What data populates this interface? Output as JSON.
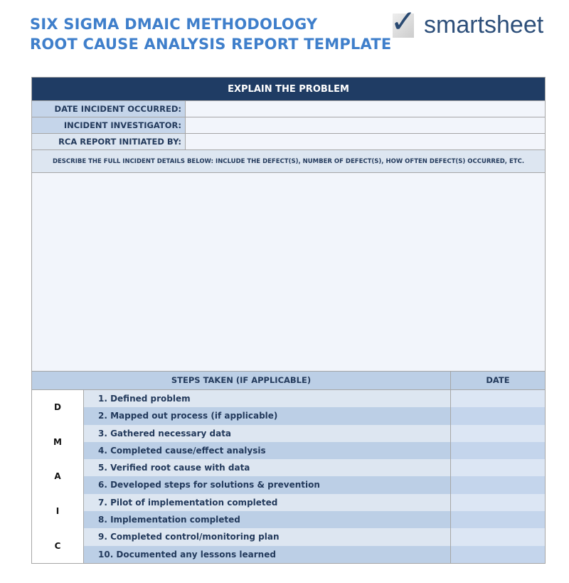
{
  "title": {
    "line1": "SIX SIGMA DMAIC METHODOLOGY",
    "line2": "ROOT CAUSE ANALYSIS REPORT TEMPLATE"
  },
  "logo": {
    "text": "smartsheet"
  },
  "problem": {
    "header": "EXPLAIN THE PROBLEM",
    "fields": [
      {
        "label": "DATE INCIDENT OCCURRED:",
        "value": ""
      },
      {
        "label": "INCIDENT INVESTIGATOR:",
        "value": ""
      },
      {
        "label": "RCA REPORT INITIATED BY:",
        "value": ""
      }
    ],
    "describe": "DESCRIBE THE FULL INCIDENT DETAILS BELOW: INCLUDE THE DEFECT(S), NUMBER OF DEFECT(S), HOW OFTEN DEFECT(S) OCCURRED, ETC.",
    "details": ""
  },
  "steps": {
    "header": "STEPS TAKEN (IF APPLICABLE)",
    "date_header": "DATE",
    "letters": [
      "D",
      "M",
      "A",
      "I",
      "C"
    ],
    "items": [
      "1. Defined problem",
      "2. Mapped out process (if applicable)",
      "3. Gathered necessary data",
      "4. Completed cause/effect analysis",
      "5. Verified root cause with data",
      "6. Developed steps for solutions & prevention",
      "7. Pilot of implementation completed",
      "8. Implementation completed",
      "9. Completed control/monitoring plan",
      "10. Documented any lessons learned"
    ]
  }
}
